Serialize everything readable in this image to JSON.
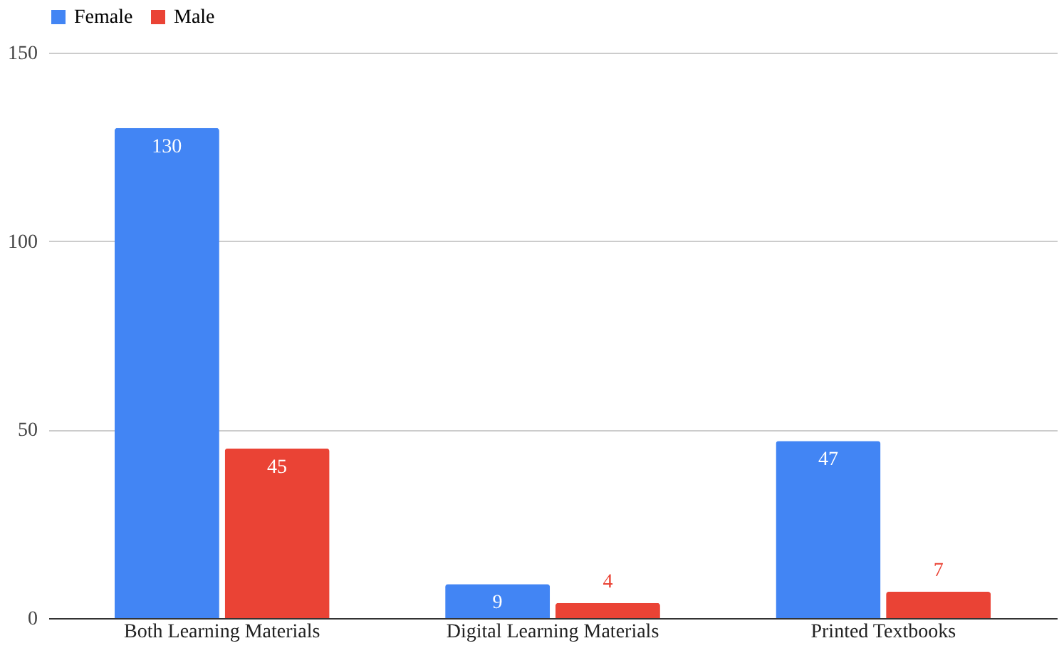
{
  "chart_data": {
    "type": "bar",
    "categories": [
      "Both Learning Materials",
      "Digital Learning Materials",
      "Printed Textbooks"
    ],
    "series": [
      {
        "name": "Female",
        "color": "#4285f4",
        "values": [
          130,
          9,
          47
        ]
      },
      {
        "name": "Male",
        "color": "#ea4335",
        "values": [
          45,
          4,
          7
        ]
      }
    ],
    "ylim": [
      0,
      150
    ],
    "yticks": [
      0,
      50,
      100,
      150
    ],
    "grid": "y",
    "legend": "top",
    "data_labels": true
  }
}
